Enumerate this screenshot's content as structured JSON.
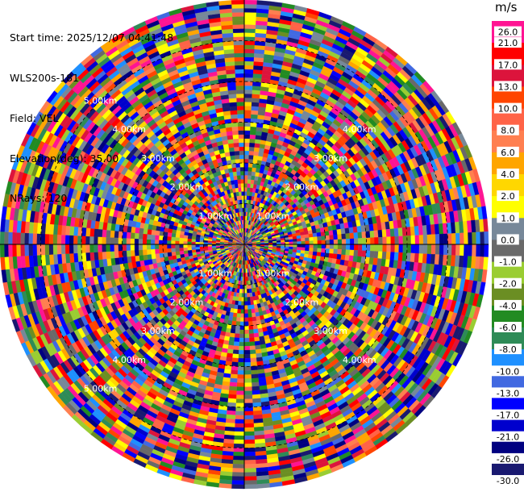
{
  "header": {
    "start_time": "Start time: 2025/12/07 04:41:48",
    "instrument": "WLS200s-181",
    "field": "Field: VEL",
    "elevation": "Elevation(deg): 35.00",
    "nrays": "NRays: 120"
  },
  "chart_data": {
    "type": "heatmap",
    "subtype": "radar-ppi",
    "title": "",
    "field": "VEL",
    "units": "m/s",
    "n_rays": 120,
    "range_rings_km": [
      1,
      2,
      3,
      4,
      5
    ],
    "range_ring_labels": [
      "1.00km",
      "2.00km",
      "3.00km",
      "4.00km",
      "5.00km"
    ],
    "max_range_km": 6.0,
    "colorbar": {
      "ticks": [
        "26.0",
        "21.0",
        "17.0",
        "13.0",
        "10.0",
        "8.0",
        "6.0",
        "4.0",
        "2.0",
        "1.0",
        "0.0",
        "-1.0",
        "-2.0",
        "-4.0",
        "-6.0",
        "-8.0",
        "-10.0",
        "-13.0",
        "-17.0",
        "-21.0",
        "-26.0",
        "-30.0"
      ],
      "colors": [
        "#ff1493",
        "#ff0000",
        "#dc143c",
        "#ff4500",
        "#ff6347",
        "#ff7f50",
        "#ffa500",
        "#ffd700",
        "#ffff00",
        "#778899",
        "#696969",
        "#9acd32",
        "#6b8e23",
        "#228b22",
        "#2e8b57",
        "#1e90ff",
        "#4169e1",
        "#0000ff",
        "#0000cd",
        "#000080",
        "#191970"
      ]
    },
    "grid": true
  }
}
